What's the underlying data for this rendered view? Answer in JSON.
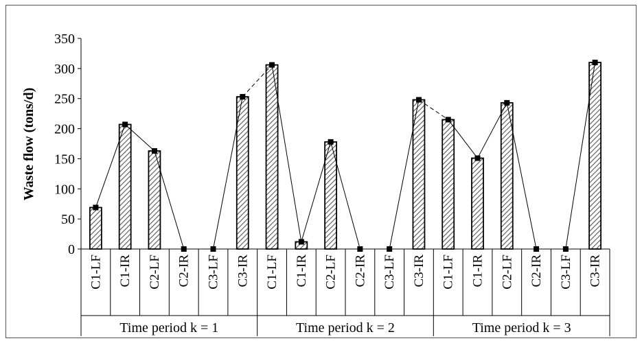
{
  "chart_data": {
    "type": "bar",
    "ylabel": "Waste flow (tons/d)",
    "ylim": [
      0,
      350
    ],
    "yticks": [
      0,
      50,
      100,
      150,
      200,
      250,
      300,
      350
    ],
    "grid": false,
    "categories": [
      "C1-LF",
      "C1-IR",
      "C2-LF",
      "C2-IR",
      "C3-LF",
      "C3-IR",
      "C1-LF",
      "C1-IR",
      "C2-LF",
      "C2-IR",
      "C3-LF",
      "C3-IR",
      "C1-LF",
      "C1-IR",
      "C2-LF",
      "C2-IR",
      "C3-LF",
      "C3-IR"
    ],
    "groups": [
      "Time period k = 1",
      "Time period k = 2",
      "Time period k = 3"
    ],
    "values": [
      69,
      207,
      163,
      0,
      0,
      253,
      306,
      12,
      178,
      0,
      0,
      248,
      215,
      151,
      243,
      0,
      0,
      310
    ],
    "colors": {
      "bar_fill": "#ffffff",
      "hatch": "#555555",
      "line": "#000000",
      "marker": "#000000"
    }
  }
}
